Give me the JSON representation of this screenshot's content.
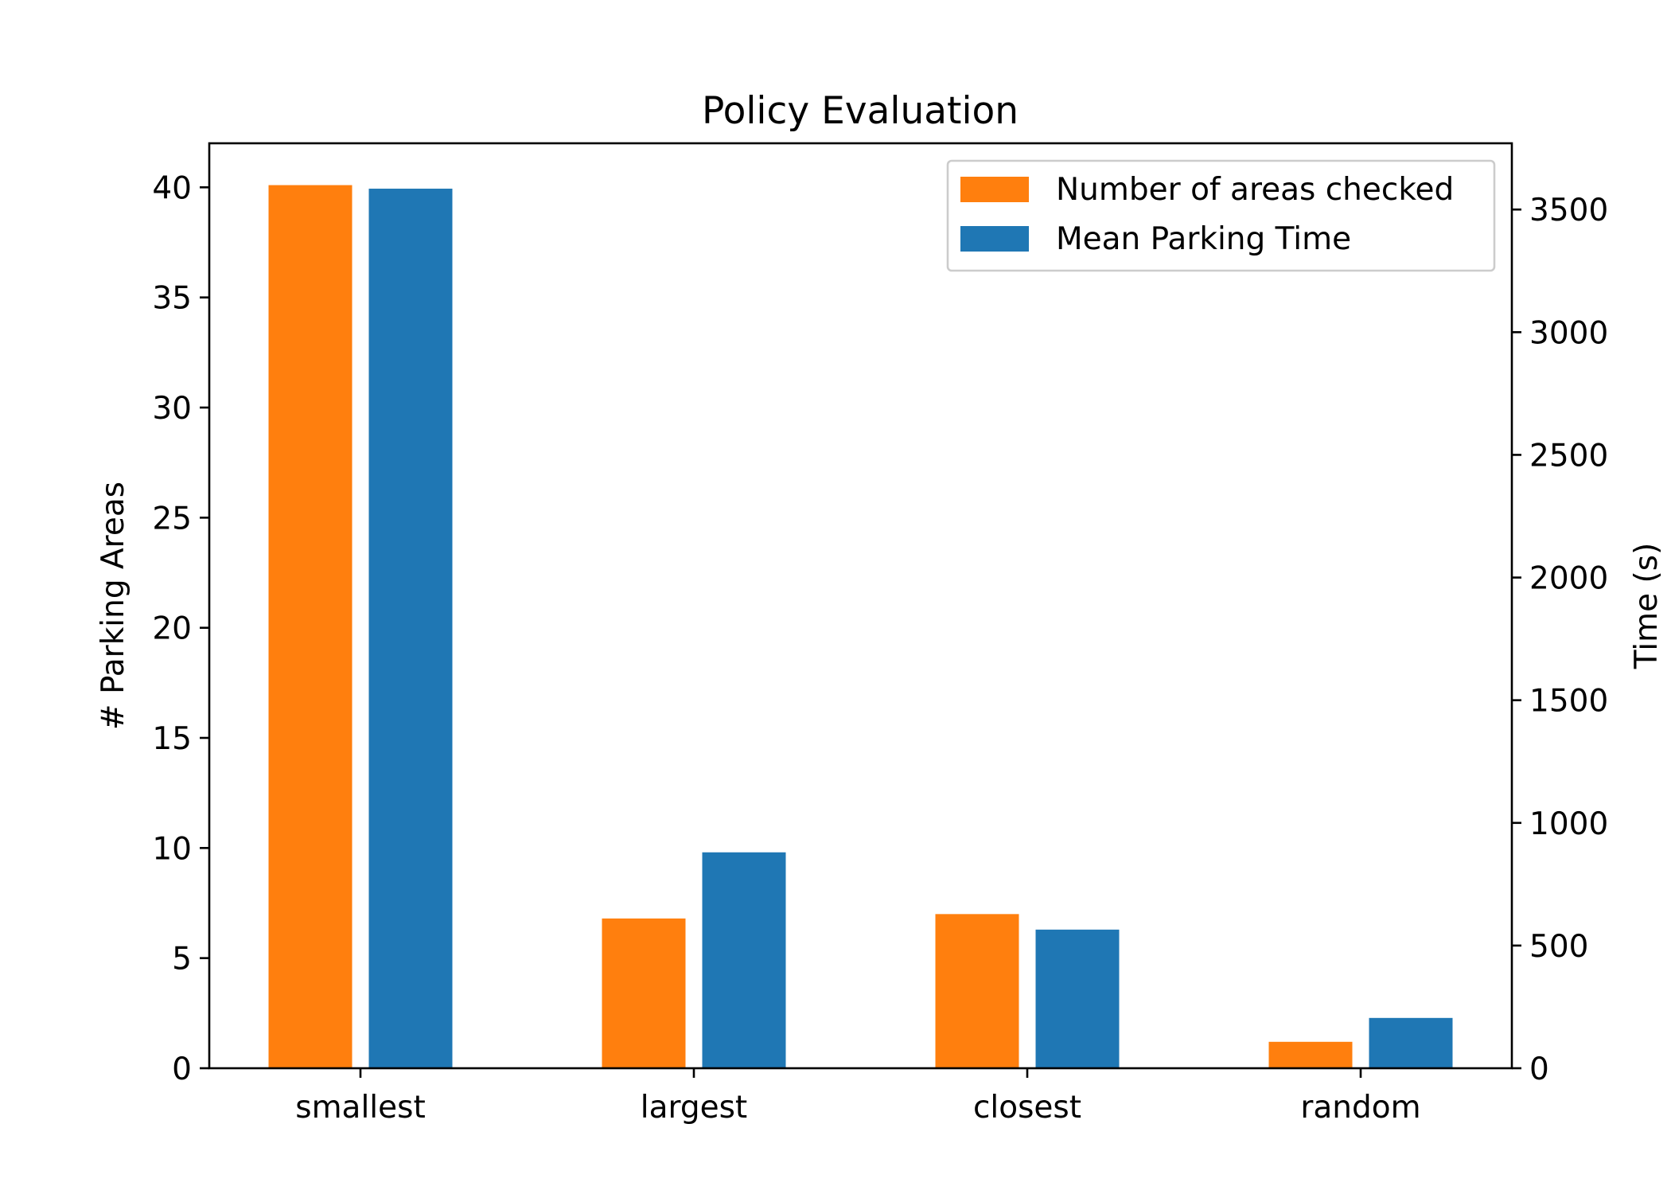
{
  "chart_data": {
    "type": "bar",
    "title": "Policy Evaluation",
    "categories": [
      "smallest",
      "largest",
      "closest",
      "random"
    ],
    "series": [
      {
        "name": "Number of areas checked",
        "axis": "left",
        "color": "#ff7f0e",
        "values": [
          40.1,
          6.8,
          7.0,
          1.2
        ]
      },
      {
        "name": "Mean Parking Time",
        "axis": "right",
        "color": "#1f77b4",
        "values": [
          3585,
          880,
          565,
          205
        ]
      }
    ],
    "ylabel": "# Parking Areas",
    "y2label": "Time (s)",
    "ylim": [
      0,
      42
    ],
    "y2lim": [
      0,
      3770
    ],
    "yticks": [
      "0",
      "5",
      "10",
      "15",
      "20",
      "25",
      "30",
      "35",
      "40"
    ],
    "y2ticks": [
      "0",
      "500",
      "1000",
      "1500",
      "2000",
      "2500",
      "3000",
      "3500"
    ],
    "grid": false,
    "legend_position": "top-right"
  }
}
